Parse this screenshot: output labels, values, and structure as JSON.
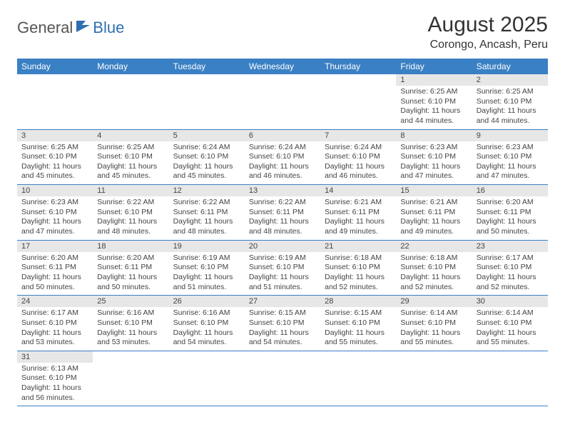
{
  "logo": {
    "part1": "General",
    "part2": "Blue"
  },
  "title": "August 2025",
  "location": "Corongo, Ancash, Peru",
  "colors": {
    "header_bg": "#3a80c4",
    "header_text": "#ffffff",
    "daynum_bg": "#e7e7e7",
    "border": "#3a80c4",
    "logo_gray": "#555555",
    "logo_blue": "#2f6fb3"
  },
  "day_headers": [
    "Sunday",
    "Monday",
    "Tuesday",
    "Wednesday",
    "Thursday",
    "Friday",
    "Saturday"
  ],
  "weeks": [
    [
      {
        "n": "",
        "sr": "",
        "ss": "",
        "dl": ""
      },
      {
        "n": "",
        "sr": "",
        "ss": "",
        "dl": ""
      },
      {
        "n": "",
        "sr": "",
        "ss": "",
        "dl": ""
      },
      {
        "n": "",
        "sr": "",
        "ss": "",
        "dl": ""
      },
      {
        "n": "",
        "sr": "",
        "ss": "",
        "dl": ""
      },
      {
        "n": "1",
        "sr": "Sunrise: 6:25 AM",
        "ss": "Sunset: 6:10 PM",
        "dl": "Daylight: 11 hours and 44 minutes."
      },
      {
        "n": "2",
        "sr": "Sunrise: 6:25 AM",
        "ss": "Sunset: 6:10 PM",
        "dl": "Daylight: 11 hours and 44 minutes."
      }
    ],
    [
      {
        "n": "3",
        "sr": "Sunrise: 6:25 AM",
        "ss": "Sunset: 6:10 PM",
        "dl": "Daylight: 11 hours and 45 minutes."
      },
      {
        "n": "4",
        "sr": "Sunrise: 6:25 AM",
        "ss": "Sunset: 6:10 PM",
        "dl": "Daylight: 11 hours and 45 minutes."
      },
      {
        "n": "5",
        "sr": "Sunrise: 6:24 AM",
        "ss": "Sunset: 6:10 PM",
        "dl": "Daylight: 11 hours and 45 minutes."
      },
      {
        "n": "6",
        "sr": "Sunrise: 6:24 AM",
        "ss": "Sunset: 6:10 PM",
        "dl": "Daylight: 11 hours and 46 minutes."
      },
      {
        "n": "7",
        "sr": "Sunrise: 6:24 AM",
        "ss": "Sunset: 6:10 PM",
        "dl": "Daylight: 11 hours and 46 minutes."
      },
      {
        "n": "8",
        "sr": "Sunrise: 6:23 AM",
        "ss": "Sunset: 6:10 PM",
        "dl": "Daylight: 11 hours and 47 minutes."
      },
      {
        "n": "9",
        "sr": "Sunrise: 6:23 AM",
        "ss": "Sunset: 6:10 PM",
        "dl": "Daylight: 11 hours and 47 minutes."
      }
    ],
    [
      {
        "n": "10",
        "sr": "Sunrise: 6:23 AM",
        "ss": "Sunset: 6:10 PM",
        "dl": "Daylight: 11 hours and 47 minutes."
      },
      {
        "n": "11",
        "sr": "Sunrise: 6:22 AM",
        "ss": "Sunset: 6:10 PM",
        "dl": "Daylight: 11 hours and 48 minutes."
      },
      {
        "n": "12",
        "sr": "Sunrise: 6:22 AM",
        "ss": "Sunset: 6:11 PM",
        "dl": "Daylight: 11 hours and 48 minutes."
      },
      {
        "n": "13",
        "sr": "Sunrise: 6:22 AM",
        "ss": "Sunset: 6:11 PM",
        "dl": "Daylight: 11 hours and 48 minutes."
      },
      {
        "n": "14",
        "sr": "Sunrise: 6:21 AM",
        "ss": "Sunset: 6:11 PM",
        "dl": "Daylight: 11 hours and 49 minutes."
      },
      {
        "n": "15",
        "sr": "Sunrise: 6:21 AM",
        "ss": "Sunset: 6:11 PM",
        "dl": "Daylight: 11 hours and 49 minutes."
      },
      {
        "n": "16",
        "sr": "Sunrise: 6:20 AM",
        "ss": "Sunset: 6:11 PM",
        "dl": "Daylight: 11 hours and 50 minutes."
      }
    ],
    [
      {
        "n": "17",
        "sr": "Sunrise: 6:20 AM",
        "ss": "Sunset: 6:11 PM",
        "dl": "Daylight: 11 hours and 50 minutes."
      },
      {
        "n": "18",
        "sr": "Sunrise: 6:20 AM",
        "ss": "Sunset: 6:11 PM",
        "dl": "Daylight: 11 hours and 50 minutes."
      },
      {
        "n": "19",
        "sr": "Sunrise: 6:19 AM",
        "ss": "Sunset: 6:10 PM",
        "dl": "Daylight: 11 hours and 51 minutes."
      },
      {
        "n": "20",
        "sr": "Sunrise: 6:19 AM",
        "ss": "Sunset: 6:10 PM",
        "dl": "Daylight: 11 hours and 51 minutes."
      },
      {
        "n": "21",
        "sr": "Sunrise: 6:18 AM",
        "ss": "Sunset: 6:10 PM",
        "dl": "Daylight: 11 hours and 52 minutes."
      },
      {
        "n": "22",
        "sr": "Sunrise: 6:18 AM",
        "ss": "Sunset: 6:10 PM",
        "dl": "Daylight: 11 hours and 52 minutes."
      },
      {
        "n": "23",
        "sr": "Sunrise: 6:17 AM",
        "ss": "Sunset: 6:10 PM",
        "dl": "Daylight: 11 hours and 52 minutes."
      }
    ],
    [
      {
        "n": "24",
        "sr": "Sunrise: 6:17 AM",
        "ss": "Sunset: 6:10 PM",
        "dl": "Daylight: 11 hours and 53 minutes."
      },
      {
        "n": "25",
        "sr": "Sunrise: 6:16 AM",
        "ss": "Sunset: 6:10 PM",
        "dl": "Daylight: 11 hours and 53 minutes."
      },
      {
        "n": "26",
        "sr": "Sunrise: 6:16 AM",
        "ss": "Sunset: 6:10 PM",
        "dl": "Daylight: 11 hours and 54 minutes."
      },
      {
        "n": "27",
        "sr": "Sunrise: 6:15 AM",
        "ss": "Sunset: 6:10 PM",
        "dl": "Daylight: 11 hours and 54 minutes."
      },
      {
        "n": "28",
        "sr": "Sunrise: 6:15 AM",
        "ss": "Sunset: 6:10 PM",
        "dl": "Daylight: 11 hours and 55 minutes."
      },
      {
        "n": "29",
        "sr": "Sunrise: 6:14 AM",
        "ss": "Sunset: 6:10 PM",
        "dl": "Daylight: 11 hours and 55 minutes."
      },
      {
        "n": "30",
        "sr": "Sunrise: 6:14 AM",
        "ss": "Sunset: 6:10 PM",
        "dl": "Daylight: 11 hours and 55 minutes."
      }
    ],
    [
      {
        "n": "31",
        "sr": "Sunrise: 6:13 AM",
        "ss": "Sunset: 6:10 PM",
        "dl": "Daylight: 11 hours and 56 minutes."
      },
      {
        "n": "",
        "sr": "",
        "ss": "",
        "dl": ""
      },
      {
        "n": "",
        "sr": "",
        "ss": "",
        "dl": ""
      },
      {
        "n": "",
        "sr": "",
        "ss": "",
        "dl": ""
      },
      {
        "n": "",
        "sr": "",
        "ss": "",
        "dl": ""
      },
      {
        "n": "",
        "sr": "",
        "ss": "",
        "dl": ""
      },
      {
        "n": "",
        "sr": "",
        "ss": "",
        "dl": ""
      }
    ]
  ]
}
